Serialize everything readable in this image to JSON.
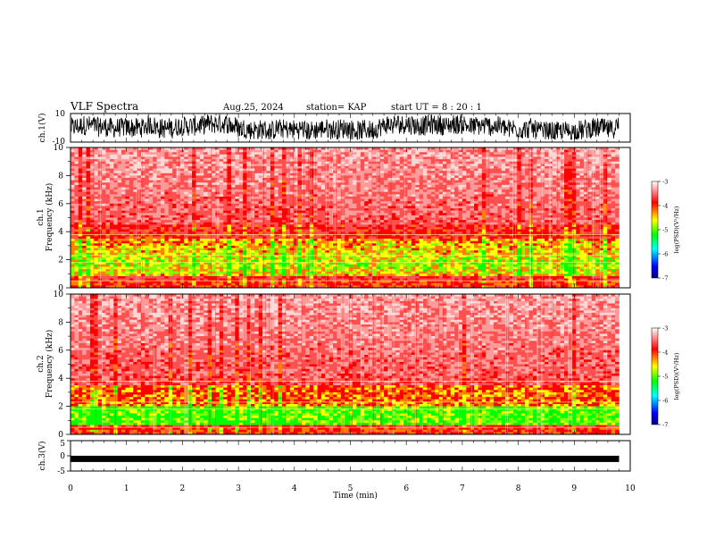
{
  "header": {
    "title": "VLF Spectra",
    "date": "Aug.25, 2024",
    "station": "station= KAP",
    "start": "start  UT =   8 : 20 : 1"
  },
  "colors": {
    "spectrogram": [
      "#ffffff",
      "#ff0000",
      "#ffff00",
      "#00ff00",
      "#00ffff",
      "#0000ff",
      "#000080"
    ],
    "trace": "#000000"
  },
  "chart_data": [
    {
      "type": "line",
      "name": "ch1-waveform",
      "ylabel": "ch.1(V)",
      "ylim": [
        -10,
        10
      ],
      "yticks": [
        "10",
        "-10"
      ],
      "x_range_min": [
        0,
        9.8
      ],
      "y_band": [
        -8,
        10
      ]
    },
    {
      "type": "heatmap",
      "name": "ch1-spectrogram",
      "ylabel": "ch.1\nFrequency (kHz)",
      "ylabel_lines": [
        "ch.1",
        "Frequency (kHz)"
      ],
      "ylim": [
        0,
        10
      ],
      "yticks": [
        "0",
        "2",
        "4",
        "6",
        "8",
        "10"
      ],
      "xlim": [
        0,
        9.8
      ],
      "bands": [
        {
          "f": [
            0,
            0.5
          ],
          "level": "yellow-red"
        },
        {
          "f": [
            0.8,
            3.5
          ],
          "level": "yellow-green"
        },
        {
          "f": [
            3.5,
            4.5
          ],
          "level": "red"
        },
        {
          "f": [
            4.5,
            10
          ],
          "level": "red-white"
        }
      ],
      "colorbar": {
        "label": "log(PSD)(V²/Hz)",
        "ticks": [
          "-3",
          "-4",
          "-5",
          "-6",
          "-7"
        ],
        "range": [
          -7,
          -3
        ]
      }
    },
    {
      "type": "heatmap",
      "name": "ch2-spectrogram",
      "ylabel": "ch.2\nFrequency (kHz)",
      "ylabel_lines": [
        "ch.2",
        "Frequency (kHz)"
      ],
      "ylim": [
        0,
        10
      ],
      "yticks": [
        "0",
        "2",
        "4",
        "6",
        "8",
        "10"
      ],
      "xlim": [
        0,
        9.8
      ],
      "bands": [
        {
          "f": [
            0,
            0.5
          ],
          "level": "yellow-red"
        },
        {
          "f": [
            0.6,
            2.0
          ],
          "level": "green-yellow"
        },
        {
          "f": [
            2.0,
            3.5
          ],
          "level": "yellow-red"
        },
        {
          "f": [
            3.5,
            10
          ],
          "level": "red-white"
        }
      ],
      "colorbar": {
        "label": "log(PSD)(V²/Hz)",
        "ticks": [
          "-3",
          "-4",
          "-5",
          "-6",
          "-7"
        ],
        "range": [
          -7,
          -3
        ]
      }
    },
    {
      "type": "line",
      "name": "ch3-waveform",
      "ylabel": "ch.3(V)",
      "ylim": [
        -5,
        5
      ],
      "yticks": [
        "5",
        "0",
        "-5"
      ],
      "level": -1,
      "xlabel": "Time (min)",
      "xlim": [
        0,
        10
      ],
      "xticks": [
        "0",
        "1",
        "2",
        "3",
        "4",
        "5",
        "6",
        "7",
        "8",
        "9",
        "10"
      ]
    }
  ]
}
